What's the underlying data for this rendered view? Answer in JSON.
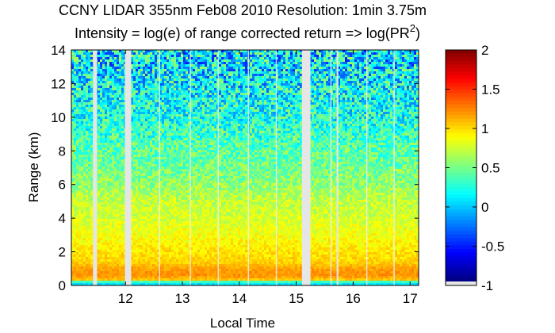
{
  "chart_data": {
    "type": "heatmap",
    "title": "CCNY LIDAR 355nm Feb08 2010 Resolution: 1min 3.75m",
    "subtitle": {
      "prefix": "Intensity = log(e) of range corrected return => log(PR",
      "superscript": "2",
      "suffix": ")"
    },
    "xlabel": "Local Time",
    "ylabel": "Range (km)",
    "xlim": [
      11.05,
      17.15
    ],
    "ylim": [
      0,
      14
    ],
    "xticks": [
      12,
      13,
      14,
      15,
      16,
      17
    ],
    "xtick_labels": [
      "12",
      "13",
      "14",
      "15",
      "16",
      "17"
    ],
    "yticks": [
      0,
      2,
      4,
      6,
      8,
      10,
      12,
      14
    ],
    "ytick_labels": [
      "0",
      "2",
      "4",
      "6",
      "8",
      "10",
      "12",
      "14"
    ],
    "colorbar": {
      "range": [
        -1,
        2
      ],
      "ticks": [
        -1,
        -0.5,
        0,
        0.5,
        1,
        1.5,
        2
      ],
      "tick_labels": [
        "-1",
        "-0.5",
        "0",
        "0.5",
        "1",
        "1.5",
        "2"
      ],
      "colormap": "jet",
      "missing_color": "#e6e6e6"
    },
    "profile": [
      {
        "range_km": 0.0,
        "value": -0.05
      },
      {
        "range_km": 0.2,
        "value": 0.25
      },
      {
        "range_km": 0.35,
        "value": 1.05
      },
      {
        "range_km": 0.6,
        "value": 1.2
      },
      {
        "range_km": 1.0,
        "value": 1.15
      },
      {
        "range_km": 1.4,
        "value": 1.0
      },
      {
        "range_km": 2.0,
        "value": 0.95
      },
      {
        "range_km": 3.0,
        "value": 0.85
      },
      {
        "range_km": 4.0,
        "value": 0.75
      },
      {
        "range_km": 5.0,
        "value": 0.7
      },
      {
        "range_km": 6.0,
        "value": 0.55
      },
      {
        "range_km": 7.0,
        "value": 0.45
      },
      {
        "range_km": 8.0,
        "value": 0.4
      },
      {
        "range_km": 9.0,
        "value": 0.3
      },
      {
        "range_km": 10.0,
        "value": 0.2
      },
      {
        "range_km": 11.0,
        "value": 0.15
      },
      {
        "range_km": 12.0,
        "value": 0.1
      },
      {
        "range_km": 13.0,
        "value": 0.05
      },
      {
        "range_km": 14.0,
        "value": 0.05
      }
    ],
    "missing_data_gaps": [
      {
        "start": 11.43,
        "end": 11.5
      },
      {
        "start": 11.99,
        "end": 12.1
      },
      {
        "start": 15.1,
        "end": 15.25
      },
      {
        "start": 15.71,
        "end": 15.74
      }
    ],
    "thin_gaps": [
      12.6,
      13.14,
      13.63,
      14.16,
      14.65,
      15.61,
      16.24,
      16.72
    ],
    "grid": false
  }
}
